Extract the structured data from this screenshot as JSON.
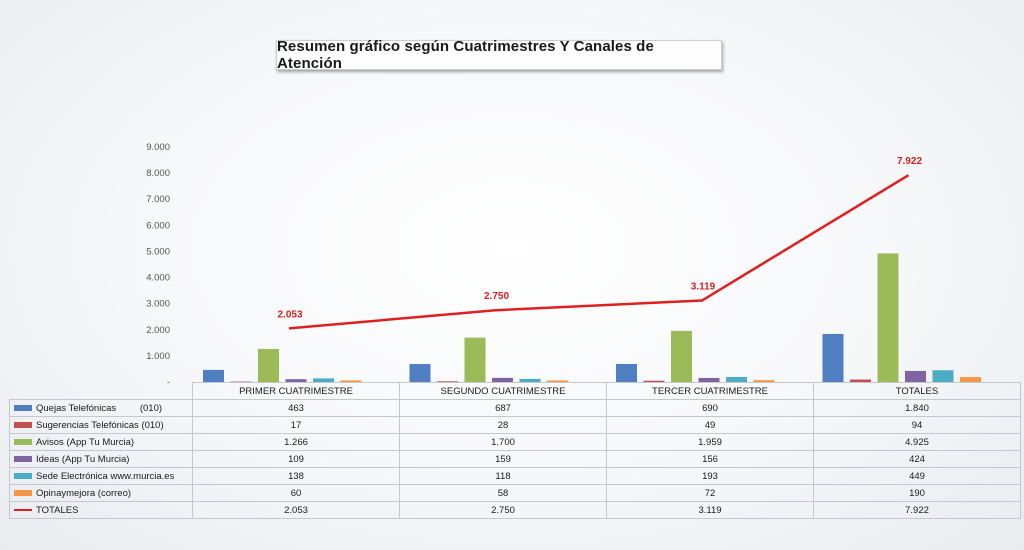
{
  "title": "Resumen gráfico según Cuatrimestres Y  Canales de Atención",
  "chart_data": {
    "type": "bar",
    "categories": [
      "PRIMER CUATRIMESTRE",
      "SEGUNDO CUATRIMESTRE",
      "TERCER CUATRIMESTRE",
      "TOTALES"
    ],
    "ylim": [
      0,
      9000
    ],
    "yticks": [
      "9.000",
      "8.000",
      "7.000",
      "6.000",
      "5.000",
      "4.000",
      "3.000",
      "2.000",
      "1.000",
      "-"
    ],
    "ytick_values": [
      9000,
      8000,
      7000,
      6000,
      5000,
      4000,
      3000,
      2000,
      1000,
      0
    ],
    "grid": false,
    "legend": "table-below",
    "series": [
      {
        "name": "Quejas Telefónicas         (010)",
        "color": "#4f7fc0",
        "values": [
          463,
          687,
          690,
          1840
        ],
        "labels": [
          "463",
          "687",
          "690",
          "1.840"
        ]
      },
      {
        "name": "Sugerencias Telefónicas (010)",
        "color": "#c0504d",
        "values": [
          17,
          28,
          49,
          94
        ],
        "labels": [
          "17",
          "28",
          "49",
          "94"
        ]
      },
      {
        "name": "Avisos (App Tu Murcia)",
        "color": "#9bbb59",
        "values": [
          1266,
          1700,
          1959,
          4925
        ],
        "labels": [
          "1.266",
          "1.700",
          "1.959",
          "4.925"
        ]
      },
      {
        "name": "Ideas (App Tu Murcia)",
        "color": "#8064a2",
        "values": [
          109,
          159,
          156,
          424
        ],
        "labels": [
          "109",
          "159",
          "156",
          "424"
        ]
      },
      {
        "name": "Sede Electrónica www.murcia.es",
        "color": "#4bacc6",
        "values": [
          138,
          118,
          193,
          449
        ],
        "labels": [
          "138",
          "118",
          "193",
          "449"
        ]
      },
      {
        "name": "Opinaymejora (correo)",
        "color": "#f79646",
        "values": [
          60,
          58,
          72,
          190
        ],
        "labels": [
          "60",
          "58",
          "72",
          "190"
        ]
      }
    ],
    "line_series": {
      "name": "TOTALES",
      "color": "#e02020",
      "values": [
        2053,
        2750,
        3119,
        7922
      ],
      "labels": [
        "2.053",
        "2.750",
        "3.119",
        "7.922"
      ]
    }
  }
}
